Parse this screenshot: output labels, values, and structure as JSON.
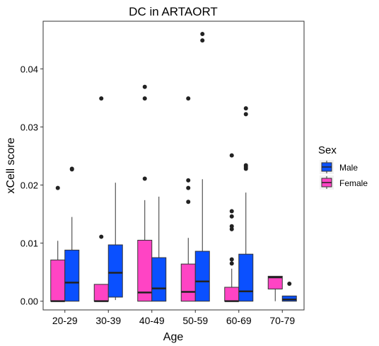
{
  "chart_data": {
    "type": "boxplot",
    "title": "DC in ARTAORT",
    "xlabel": "Age",
    "ylabel": "xCell score",
    "ylim": [
      -0.0015,
      0.0482
    ],
    "yticks": [
      0.0,
      0.01,
      0.02,
      0.03,
      0.04
    ],
    "ytick_labels": [
      "0.00",
      "0.01",
      "0.02",
      "0.03",
      "0.04"
    ],
    "categories": [
      "20-29",
      "30-39",
      "40-49",
      "50-59",
      "60-69",
      "70-79"
    ],
    "grid": false,
    "legend": {
      "title": "Sex",
      "position": "right",
      "entries": [
        {
          "name": "Male",
          "color": "#0a50ff"
        },
        {
          "name": "Female",
          "color": "#ff44c4"
        }
      ]
    },
    "series": [
      {
        "name": "Female",
        "color": "#ff44c4",
        "boxes": [
          {
            "category": "20-29",
            "min": 0.0,
            "q1": 0.0,
            "median": 0.0,
            "q3": 0.0071,
            "max": 0.0104,
            "outliers": [
              0.0195
            ]
          },
          {
            "category": "30-39",
            "min": 0.0,
            "q1": 0.0,
            "median": 0.0,
            "q3": 0.0029,
            "max": 0.0029,
            "outliers": [
              0.0111,
              0.0349
            ]
          },
          {
            "category": "40-49",
            "min": 0.0,
            "q1": 0.0,
            "median": 0.0015,
            "q3": 0.0105,
            "max": 0.0174,
            "outliers": [
              0.0211,
              0.0349,
              0.0369
            ]
          },
          {
            "category": "50-59",
            "min": 0.0,
            "q1": 0.0,
            "median": 0.0016,
            "q3": 0.0064,
            "max": 0.0109,
            "outliers": [
              0.0171,
              0.0195,
              0.0208,
              0.0349
            ]
          },
          {
            "category": "60-69",
            "min": 0.0,
            "q1": 0.0,
            "median": 0.0,
            "q3": 0.0024,
            "max": 0.0056,
            "outliers": [
              0.0065,
              0.0072,
              0.0124,
              0.0129,
              0.0146,
              0.0155,
              0.0251
            ]
          },
          {
            "category": "70-79",
            "min": 0.0,
            "q1": 0.0021,
            "median": 0.0041,
            "q3": 0.0043,
            "max": 0.0043,
            "outliers": []
          }
        ]
      },
      {
        "name": "Male",
        "color": "#0a50ff",
        "boxes": [
          {
            "category": "20-29",
            "min": 0.0,
            "q1": 0.0,
            "median": 0.0032,
            "q3": 0.0088,
            "max": 0.0145,
            "outliers": [
              0.0227,
              0.0228
            ]
          },
          {
            "category": "30-39",
            "min": 0.0002,
            "q1": 0.0007,
            "median": 0.0049,
            "q3": 0.0097,
            "max": 0.0204,
            "outliers": []
          },
          {
            "category": "40-49",
            "min": 0.0,
            "q1": 0.0,
            "median": 0.0022,
            "q3": 0.0075,
            "max": 0.018,
            "outliers": []
          },
          {
            "category": "50-59",
            "min": 0.0,
            "q1": 0.0,
            "median": 0.0034,
            "q3": 0.0086,
            "max": 0.021,
            "outliers": [
              0.0449,
              0.046
            ]
          },
          {
            "category": "60-69",
            "min": 0.0,
            "q1": 0.0,
            "median": 0.0017,
            "q3": 0.0081,
            "max": 0.0187,
            "outliers": [
              0.0228,
              0.0231,
              0.0234,
              0.0322,
              0.0332
            ]
          },
          {
            "category": "70-79",
            "min": 0.0,
            "q1": 0.0,
            "median": 0.0003,
            "q3": 0.0009,
            "max": 0.0009,
            "outliers": [
              0.003
            ]
          }
        ]
      }
    ]
  }
}
